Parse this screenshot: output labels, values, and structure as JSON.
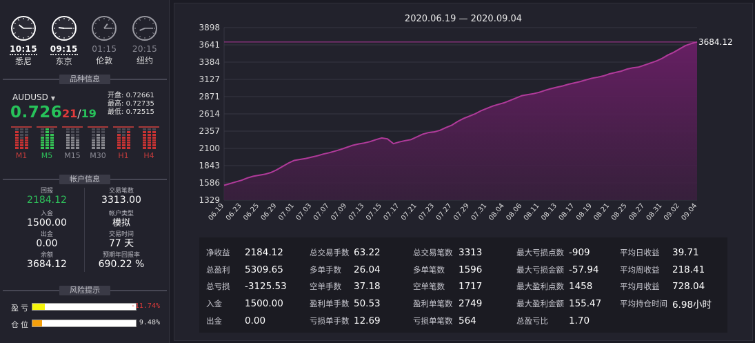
{
  "clocks": [
    {
      "time": "10:15",
      "city": "悉尼",
      "state": "active",
      "hour": 10,
      "minute": 15
    },
    {
      "time": "09:15",
      "city": "东京",
      "state": "active",
      "hour": 9,
      "minute": 15
    },
    {
      "time": "01:15",
      "city": "伦敦",
      "state": "dim",
      "hour": 1,
      "minute": 15
    },
    {
      "time": "20:15",
      "city": "纽约",
      "state": "dim",
      "hour": 20,
      "minute": 15
    }
  ],
  "sections": {
    "instrument": "品种信息",
    "account": "帐户信息",
    "risk": "风险提示"
  },
  "instrument": {
    "symbol": "AUDUSD",
    "price": "0.726",
    "ask": "21",
    "sep": "/",
    "bid": "19",
    "open_label": "开盘:",
    "open": "0.72661",
    "high_label": "最高:",
    "high": "0.72735",
    "low_label": "最低:",
    "low": "0.72515"
  },
  "timeframes": [
    {
      "label": "M1",
      "tone": "red",
      "levels": [
        7,
        4,
        5
      ]
    },
    {
      "label": "M5",
      "tone": "green",
      "levels": [
        5,
        8,
        6
      ]
    },
    {
      "label": "M15",
      "tone": "gray",
      "levels": [
        6,
        5,
        4
      ]
    },
    {
      "label": "M30",
      "tone": "gray",
      "levels": [
        4,
        6,
        5
      ]
    },
    {
      "label": "H1",
      "tone": "red",
      "levels": [
        6,
        5,
        7
      ]
    },
    {
      "label": "H4",
      "tone": "red",
      "levels": [
        7,
        7,
        7
      ]
    }
  ],
  "account": {
    "return_label": "回报",
    "return": "2184.12",
    "trades_label": "交易笔数",
    "trades": "3313.00",
    "deposit_label": "入金",
    "deposit": "1500.00",
    "type_label": "帐户类型",
    "type": "模拟",
    "withdraw_label": "出金",
    "withdraw": "0.00",
    "time_label": "交易时间",
    "time": "77 天",
    "balance_label": "余额",
    "balance": "3684.12",
    "annual_label": "预期年回报率",
    "annual": "690.22 %"
  },
  "risk": [
    {
      "name": "盈亏",
      "value": "-11.74%",
      "level": 0.1174,
      "color": "#f5f50c",
      "text_color": "#e23b3b"
    },
    {
      "name": "仓位",
      "value": "9.48%",
      "level": 0.0948,
      "color": "#f5a00c",
      "text_color": "#e0e0e0"
    }
  ],
  "chart_data": {
    "type": "area",
    "title": "2020.06.19 — 2020.09.04",
    "yticks": [
      1329,
      1586,
      1843,
      2100,
      2357,
      2614,
      2871,
      3127,
      3384,
      3641,
      3898
    ],
    "ylim": [
      1329,
      3898
    ],
    "xticks": [
      "06.19",
      "06.23",
      "06.25",
      "06.29",
      "07.01",
      "07.03",
      "07.07",
      "07.09",
      "07.13",
      "07.15",
      "07.17",
      "07.21",
      "07.23",
      "07.27",
      "07.29",
      "07.31",
      "08.04",
      "08.06",
      "08.11",
      "08.13",
      "08.17",
      "08.19",
      "08.21",
      "08.25",
      "08.27",
      "08.31",
      "09.02",
      "09.04"
    ],
    "last_value_label": "3684.12",
    "last_value": 3684.12,
    "series": [
      {
        "values": [
          1550,
          1575,
          1600,
          1625,
          1660,
          1685,
          1700,
          1715,
          1740,
          1780,
          1830,
          1880,
          1920,
          1935,
          1950,
          1970,
          1990,
          2015,
          2035,
          2060,
          2085,
          2115,
          2145,
          2165,
          2180,
          2200,
          2230,
          2255,
          2240,
          2170,
          2195,
          2215,
          2230,
          2270,
          2310,
          2335,
          2345,
          2370,
          2410,
          2445,
          2500,
          2545,
          2580,
          2615,
          2660,
          2695,
          2730,
          2755,
          2780,
          2815,
          2850,
          2885,
          2900,
          2915,
          2935,
          2965,
          2990,
          3010,
          3030,
          3055,
          3075,
          3095,
          3120,
          3145,
          3160,
          3180,
          3210,
          3230,
          3250,
          3280,
          3300,
          3310,
          3340,
          3370,
          3400,
          3440,
          3490,
          3530,
          3580,
          3630,
          3660,
          3684.12
        ]
      }
    ],
    "color": "#b03a9a",
    "grid": true
  },
  "stats": {
    "groups": [
      [
        [
          "净收益",
          "2184.12"
        ],
        [
          "总盈利",
          "5309.65"
        ],
        [
          "总亏损",
          "-3125.53"
        ],
        [
          "入金",
          "1500.00"
        ],
        [
          "出金",
          "0.00"
        ]
      ],
      [
        [
          "总交易手数",
          "63.22"
        ],
        [
          "多单手数",
          "26.04"
        ],
        [
          "空单手数",
          "37.18"
        ],
        [
          "盈利单手数",
          "50.53"
        ],
        [
          "亏损单手数",
          "12.69"
        ]
      ],
      [
        [
          "总交易笔数",
          "3313"
        ],
        [
          "多单笔数",
          "1596"
        ],
        [
          "空单笔数",
          "1717"
        ],
        [
          "盈利单笔数",
          "2749"
        ],
        [
          "亏损单笔数",
          "564"
        ]
      ],
      [
        [
          "最大亏损点数",
          "-909"
        ],
        [
          "最大亏损金额",
          "-57.94"
        ],
        [
          "最大盈利点数",
          "1458"
        ],
        [
          "最大盈利金额",
          "155.47"
        ],
        [
          "总盈亏比",
          "1.70"
        ]
      ],
      [
        [
          "平均日收益",
          "39.71"
        ],
        [
          "平均周收益",
          "218.41"
        ],
        [
          "平均月收益",
          "728.04"
        ],
        [
          "平均持仓时间",
          "6.98小时"
        ]
      ]
    ]
  }
}
